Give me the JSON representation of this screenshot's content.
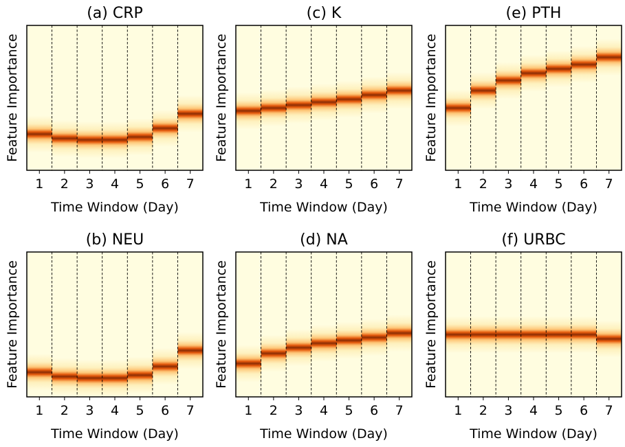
{
  "chart_data": [
    {
      "type": "heatmap",
      "title": "(a) CRP",
      "xlabel": "Time Window (Day)",
      "ylabel": "Feature Importance",
      "x_ticks": [
        "1",
        "2",
        "3",
        "4",
        "5",
        "6",
        "7"
      ],
      "ylim": [
        0,
        1
      ],
      "band_level": [
        0.25,
        0.22,
        0.21,
        0.21,
        0.23,
        0.29,
        0.39
      ]
    },
    {
      "type": "heatmap",
      "title": "(b) NEU",
      "xlabel": "Time Window (Day)",
      "ylabel": "Feature Importance",
      "x_ticks": [
        "1",
        "2",
        "3",
        "4",
        "5",
        "6",
        "7"
      ],
      "ylim": [
        0,
        1
      ],
      "band_level": [
        0.17,
        0.14,
        0.13,
        0.13,
        0.15,
        0.21,
        0.32
      ]
    },
    {
      "type": "heatmap",
      "title": "(c) K",
      "xlabel": "Time Window (Day)",
      "ylabel": "Feature Importance",
      "x_ticks": [
        "1",
        "2",
        "3",
        "4",
        "5",
        "6",
        "7"
      ],
      "ylim": [
        0,
        1
      ],
      "band_level": [
        0.41,
        0.43,
        0.45,
        0.47,
        0.49,
        0.52,
        0.55
      ]
    },
    {
      "type": "heatmap",
      "title": "(d) NA",
      "xlabel": "Time Window (Day)",
      "ylabel": "Feature Importance",
      "x_ticks": [
        "1",
        "2",
        "3",
        "4",
        "5",
        "6",
        "7"
      ],
      "ylim": [
        0,
        1
      ],
      "band_level": [
        0.23,
        0.3,
        0.34,
        0.37,
        0.39,
        0.41,
        0.44
      ]
    },
    {
      "type": "heatmap",
      "title": "(e) PTH",
      "xlabel": "Time Window (Day)",
      "ylabel": "Feature Importance",
      "x_ticks": [
        "1",
        "2",
        "3",
        "4",
        "5",
        "6",
        "7"
      ],
      "ylim": [
        0,
        1
      ],
      "band_level": [
        0.43,
        0.55,
        0.62,
        0.67,
        0.7,
        0.73,
        0.78
      ]
    },
    {
      "type": "heatmap",
      "title": "(f) URBC",
      "xlabel": "Time Window (Day)",
      "ylabel": "Feature Importance",
      "x_ticks": [
        "1",
        "2",
        "3",
        "4",
        "5",
        "6",
        "7"
      ],
      "ylim": [
        0,
        1
      ],
      "band_level": [
        0.43,
        0.43,
        0.43,
        0.43,
        0.43,
        0.43,
        0.4
      ]
    }
  ],
  "colors": {
    "background": "#fffde0",
    "band_core": "#8c2d04",
    "band_mid": "#e65a0c",
    "band_glow": "#fdbb63",
    "band_halo": "#fee9a8",
    "divider": "#000000",
    "axes": "#000000"
  }
}
